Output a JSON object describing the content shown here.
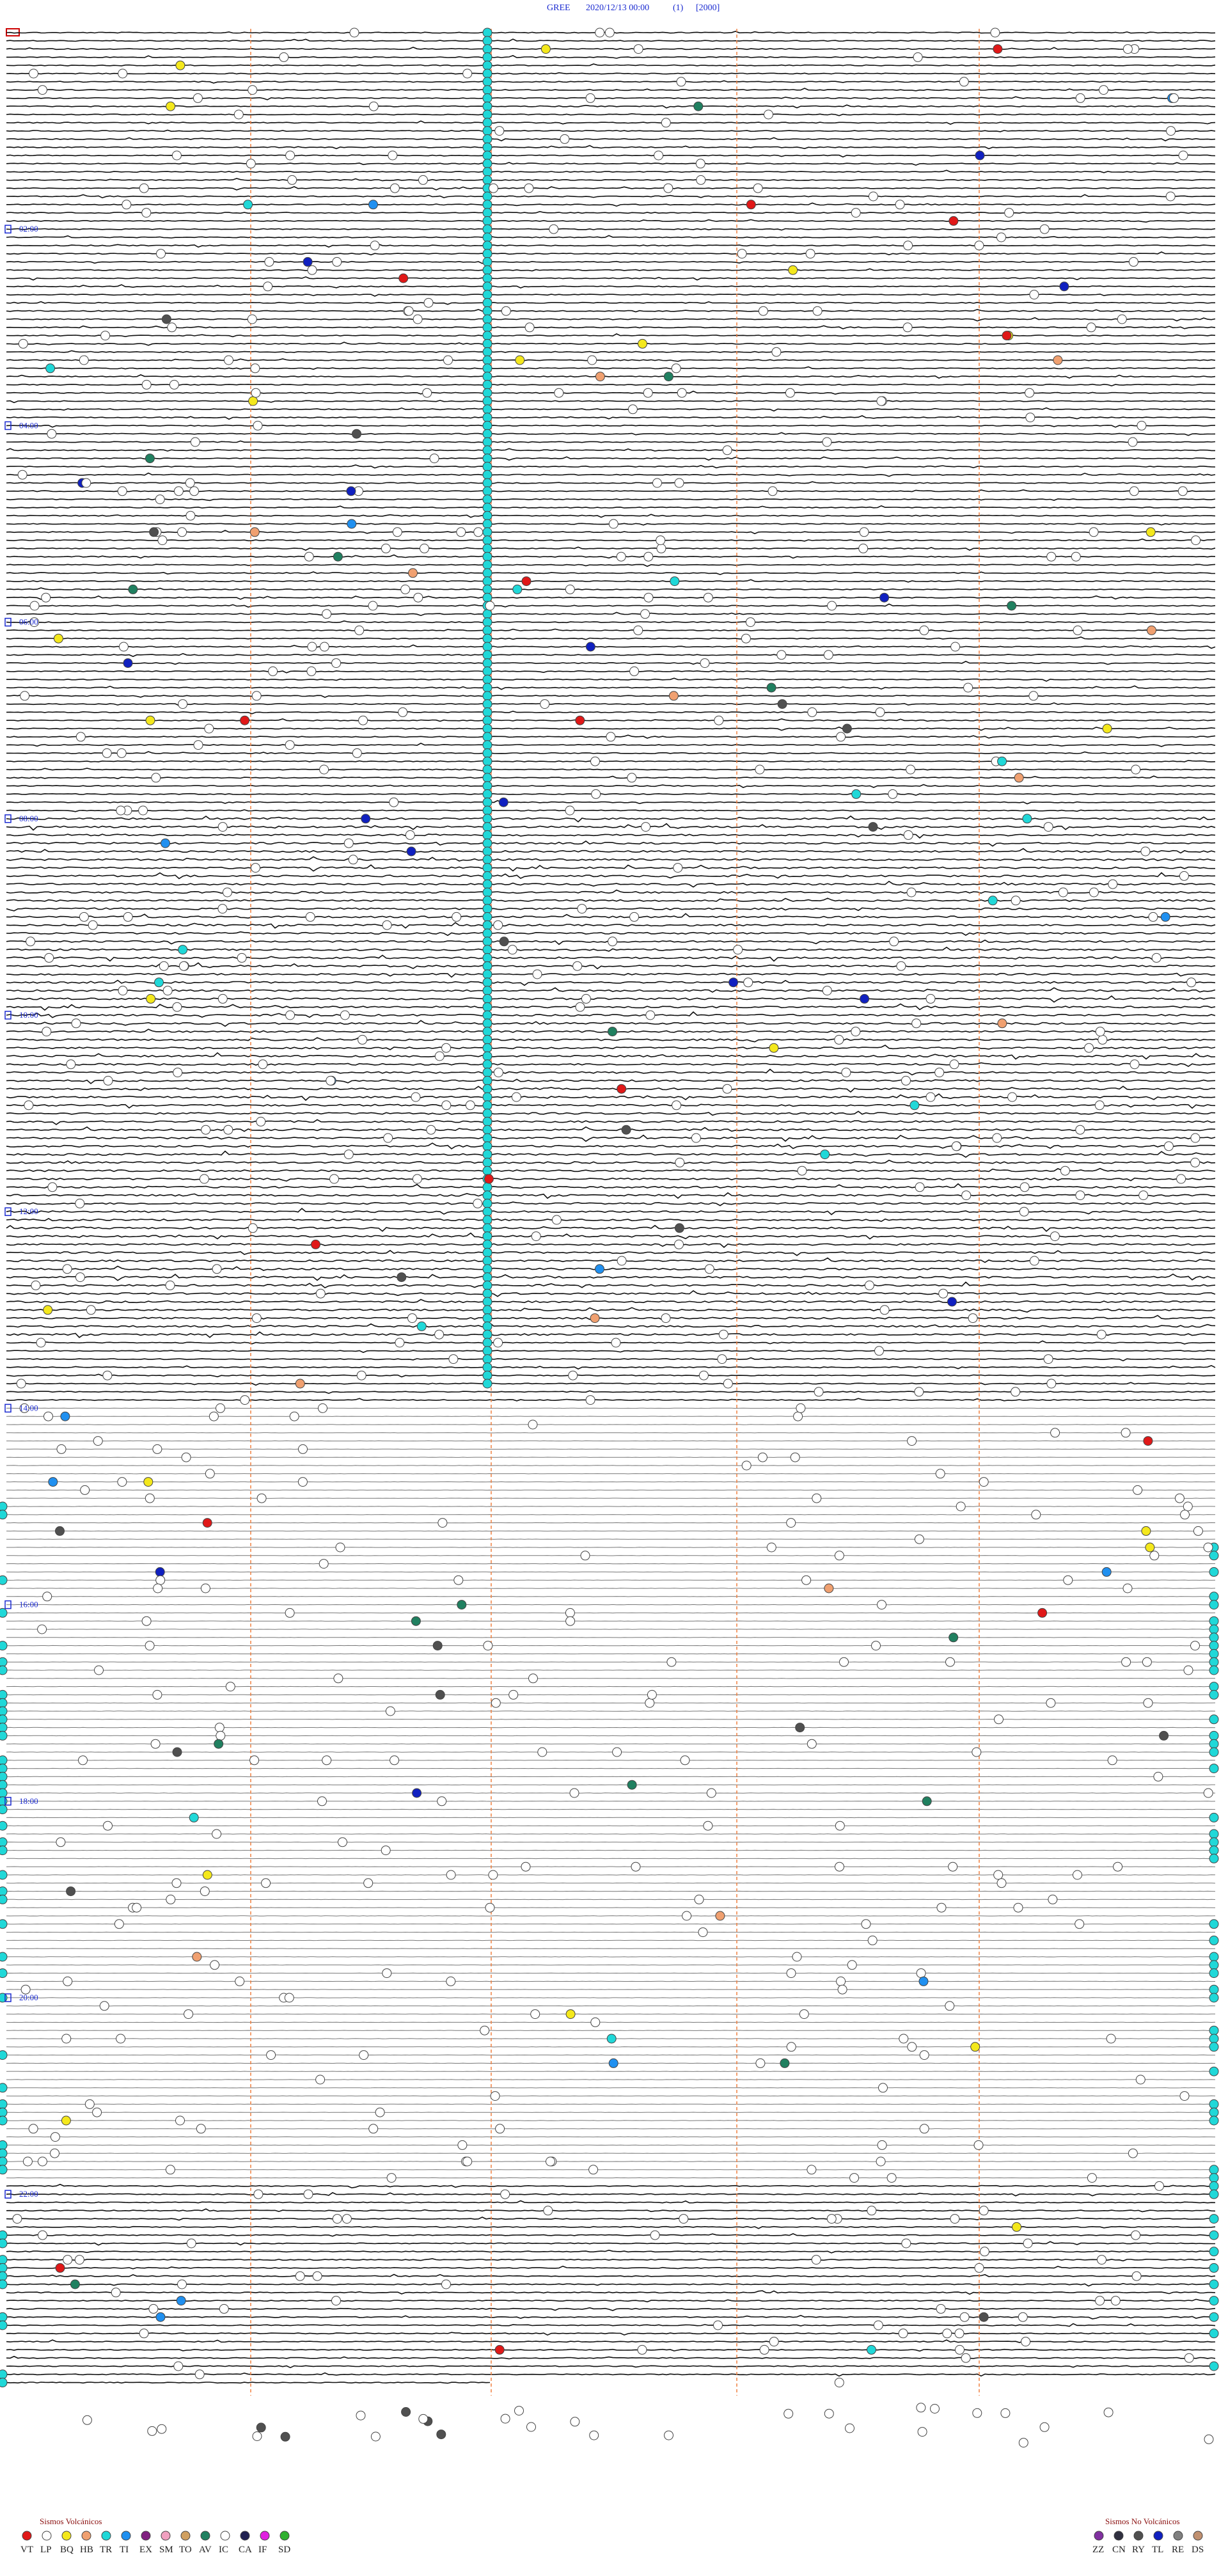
{
  "header": {
    "station": "GREE",
    "datetime": "2020/12/13 00:00",
    "channel": "(1)",
    "scale": "[2000]"
  },
  "hour_labels": [
    "02:00",
    "04:00",
    "06:00",
    "08:00",
    "10:00",
    "12:00",
    "14:00",
    "16:00",
    "18:00",
    "20:00",
    "22:00"
  ],
  "legend": {
    "volcanic": {
      "title": "Sismos Volcánicos",
      "items": [
        {
          "code": "VT",
          "color": "#e01818"
        },
        {
          "code": "LP",
          "color": "#ffffff"
        },
        {
          "code": "BQ",
          "color": "#f4e81c"
        },
        {
          "code": "HB",
          "color": "#f0a070"
        },
        {
          "code": "TR",
          "color": "#20d8d8"
        },
        {
          "code": "TI",
          "color": "#2090f0"
        },
        {
          "code": "EX",
          "color": "#802080"
        },
        {
          "code": "SM",
          "color": "#f0a0c0"
        },
        {
          "code": "TO",
          "color": "#d0a060"
        },
        {
          "code": "AV",
          "color": "#208060"
        },
        {
          "code": "IC",
          "color": "#ffffff"
        },
        {
          "code": "CA",
          "color": "#202050"
        },
        {
          "code": "IF",
          "color": "#e020e0"
        },
        {
          "code": "SD",
          "color": "#30b030"
        }
      ]
    },
    "non_volcanic": {
      "title": "Sismos No Volcánicos",
      "items": [
        {
          "code": "ZZ",
          "color": "#8030a0"
        },
        {
          "code": "CN",
          "color": "#303040"
        },
        {
          "code": "RY",
          "color": "#505050"
        },
        {
          "code": "TL",
          "color": "#1020c0"
        },
        {
          "code": "RE",
          "color": "#808080"
        },
        {
          "code": "DS",
          "color": "#c09070"
        }
      ]
    }
  }
}
